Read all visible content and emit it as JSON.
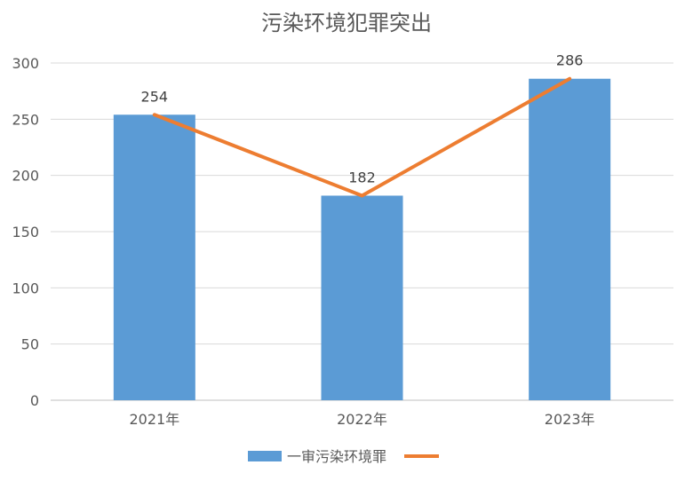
{
  "chart_data": {
    "type": "bar",
    "title": "污染环境犯罪突出",
    "categories": [
      "2021年",
      "2022年",
      "2023年"
    ],
    "series": [
      {
        "name": "一审污染环境罪",
        "type": "bar",
        "color": "#5B9BD5",
        "values": [
          254,
          182,
          286
        ]
      },
      {
        "name": "",
        "type": "line",
        "color": "#ED7D31",
        "values": [
          254,
          182,
          286
        ]
      }
    ],
    "data_labels": [
      "254",
      "182",
      "286"
    ],
    "ylim": [
      0,
      300
    ],
    "yticks": [
      0,
      50,
      100,
      150,
      200,
      250,
      300
    ],
    "grid": true,
    "legend_position": "bottom"
  }
}
